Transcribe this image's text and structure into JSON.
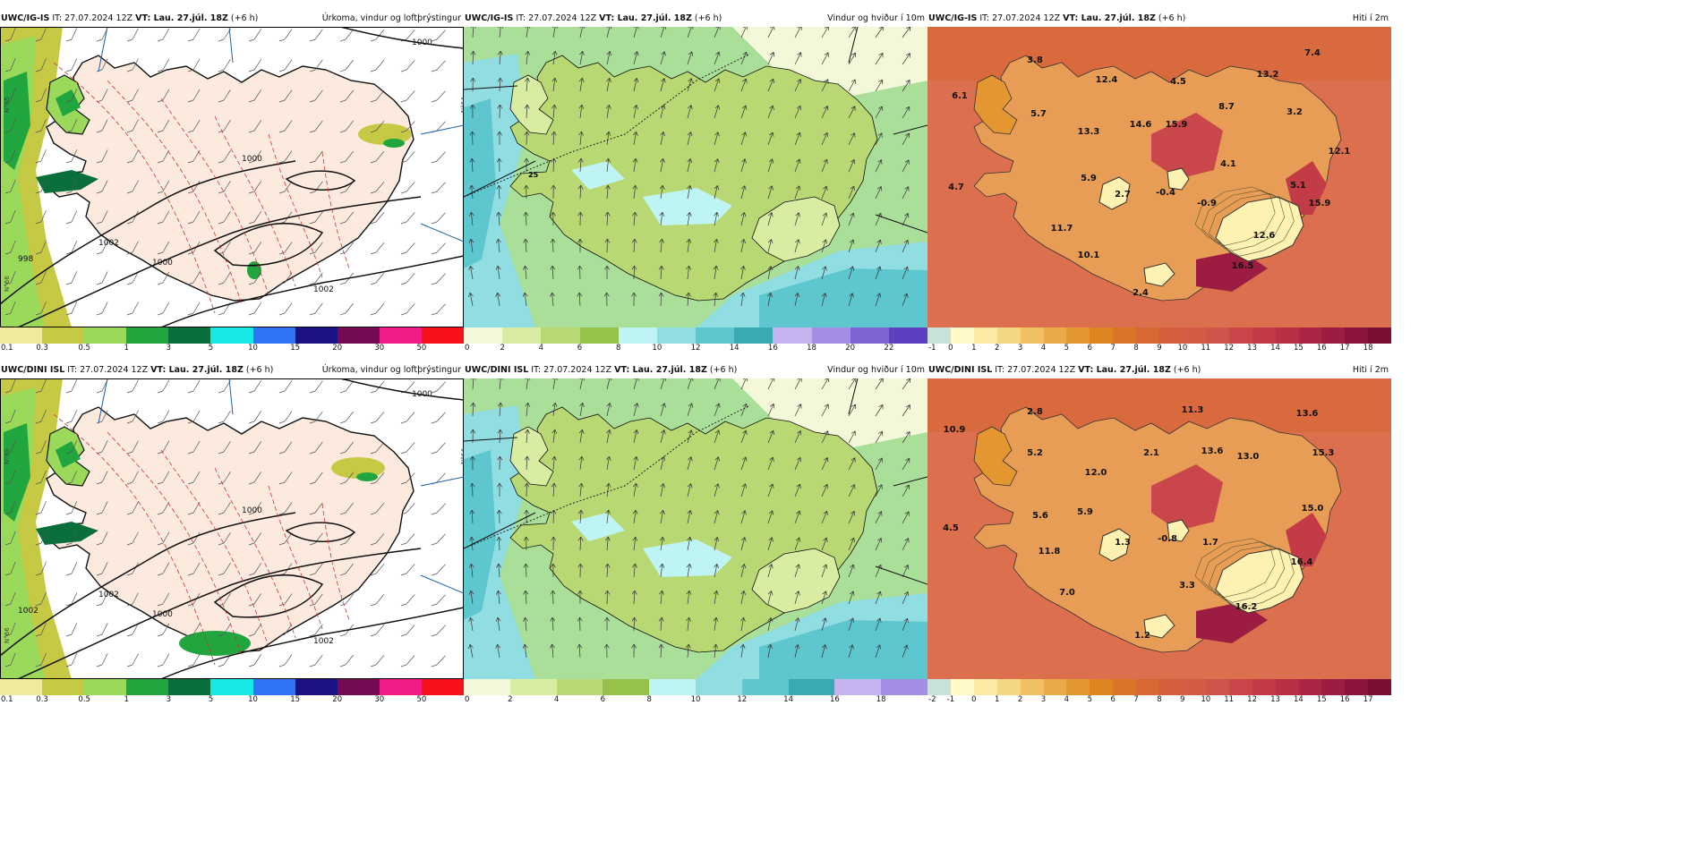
{
  "rows": [
    {
      "model": "UWC/IG-IS",
      "it": "27.07.2024 12Z",
      "vt": "Lau. 27.júl. 18Z",
      "lead": "(+6 h)",
      "titles": [
        "Úrkoma, vindur og loftþrýstingur",
        "Vindur og hviður í 10m",
        "Hiti í 2m"
      ],
      "isobars": [
        "1000",
        "1000",
        "1000",
        "1002",
        "1002",
        "998"
      ],
      "temps": [
        "3.8",
        "12.4",
        "4.5",
        "13.2",
        "7.4",
        "6.1",
        "5.7",
        "14.6",
        "15.9",
        "8.7",
        "3.2",
        "13.3",
        "12.1",
        "4.1",
        "5.9",
        "4.7",
        "2.7",
        "-0.4",
        "5.1",
        "-0.9",
        "15.9",
        "11.7",
        "12.6",
        "10.1",
        "16.5",
        "2.4"
      ],
      "gust_marker": "25",
      "precip_ticks": [
        "0.1",
        "0.3",
        "0.5",
        "1",
        "3",
        "5",
        "10",
        "15",
        "20",
        "30",
        "50"
      ],
      "wind_ticks": [
        "0",
        "2",
        "4",
        "6",
        "8",
        "10",
        "12",
        "14",
        "16",
        "18",
        "20",
        "22"
      ],
      "temp_ticks": [
        "-1",
        "0",
        "1",
        "2",
        "3",
        "4",
        "5",
        "6",
        "7",
        "8",
        "9",
        "10",
        "11",
        "12",
        "13",
        "14",
        "15",
        "16",
        "17",
        "18"
      ]
    },
    {
      "model": "UWC/DINI ISL",
      "it": "27.07.2024 12Z",
      "vt": "Lau. 27.júl. 18Z",
      "lead": "(+6 h)",
      "titles": [
        "Úrkoma, vindur og loftþrýstingur",
        "Vindur og hviður í 10m",
        "Hiti í 2m"
      ],
      "isobars": [
        "1000",
        "1000",
        "1000",
        "1002",
        "1002",
        "1002"
      ],
      "temps": [
        "2.8",
        "11.3",
        "13.6",
        "10.9",
        "5.2",
        "2.1",
        "13.6",
        "13.0",
        "15.3",
        "12.0",
        "5.6",
        "5.9",
        "15.0",
        "4.5",
        "1.3",
        "-0.8",
        "1.7",
        "11.8",
        "16.4",
        "7.0",
        "3.3",
        "16.2",
        "1.2"
      ],
      "gust_marker": "",
      "precip_ticks": [
        "0.1",
        "0.3",
        "0.5",
        "1",
        "3",
        "5",
        "10",
        "15",
        "20",
        "30",
        "50"
      ],
      "wind_ticks": [
        "0",
        "2",
        "4",
        "6",
        "8",
        "10",
        "12",
        "14",
        "16",
        "18"
      ],
      "temp_ticks": [
        "-2",
        "-1",
        "0",
        "1",
        "2",
        "3",
        "4",
        "5",
        "6",
        "7",
        "8",
        "9",
        "10",
        "11",
        "12",
        "13",
        "14",
        "15",
        "16",
        "17"
      ]
    }
  ],
  "axis_labels": [
    "N°65",
    "N°66",
    "N°64"
  ],
  "colors": {
    "precip": [
      "#eeeb9c",
      "#c5c944",
      "#9ad95a",
      "#20a53f",
      "#0a6f3a",
      "#16e8e3",
      "#2e74f4",
      "#1b1285",
      "#750b54",
      "#f21c88",
      "#f7121b"
    ],
    "wind": [
      "#f3f8d8",
      "#d8eca2",
      "#b7d873",
      "#96c24a",
      "#bff4f4",
      "#90dde2",
      "#5ec6cf",
      "#39a9b4",
      "#c5b4ef",
      "#a48de4",
      "#8064d4",
      "#5d3fbf"
    ],
    "temp": [
      "#c9e2d8",
      "#fff9c8",
      "#fbeaa4",
      "#f4d683",
      "#efc163",
      "#eaaa48",
      "#e49631",
      "#de8421",
      "#d97428",
      "#d76735",
      "#d6603e",
      "#d25c45",
      "#cf544a",
      "#c9474a",
      "#c23b47",
      "#b72f45",
      "#ab2644",
      "#9d1d42",
      "#8c133d",
      "#7a0f36"
    ],
    "sea_precip": "#ffffff",
    "land_precip": "#fbeadd",
    "land_temp": "#e79d56",
    "sea_temp": "#dc6f4d",
    "sea_wind": "#aadf9a",
    "ice": "#fdf2b2"
  }
}
